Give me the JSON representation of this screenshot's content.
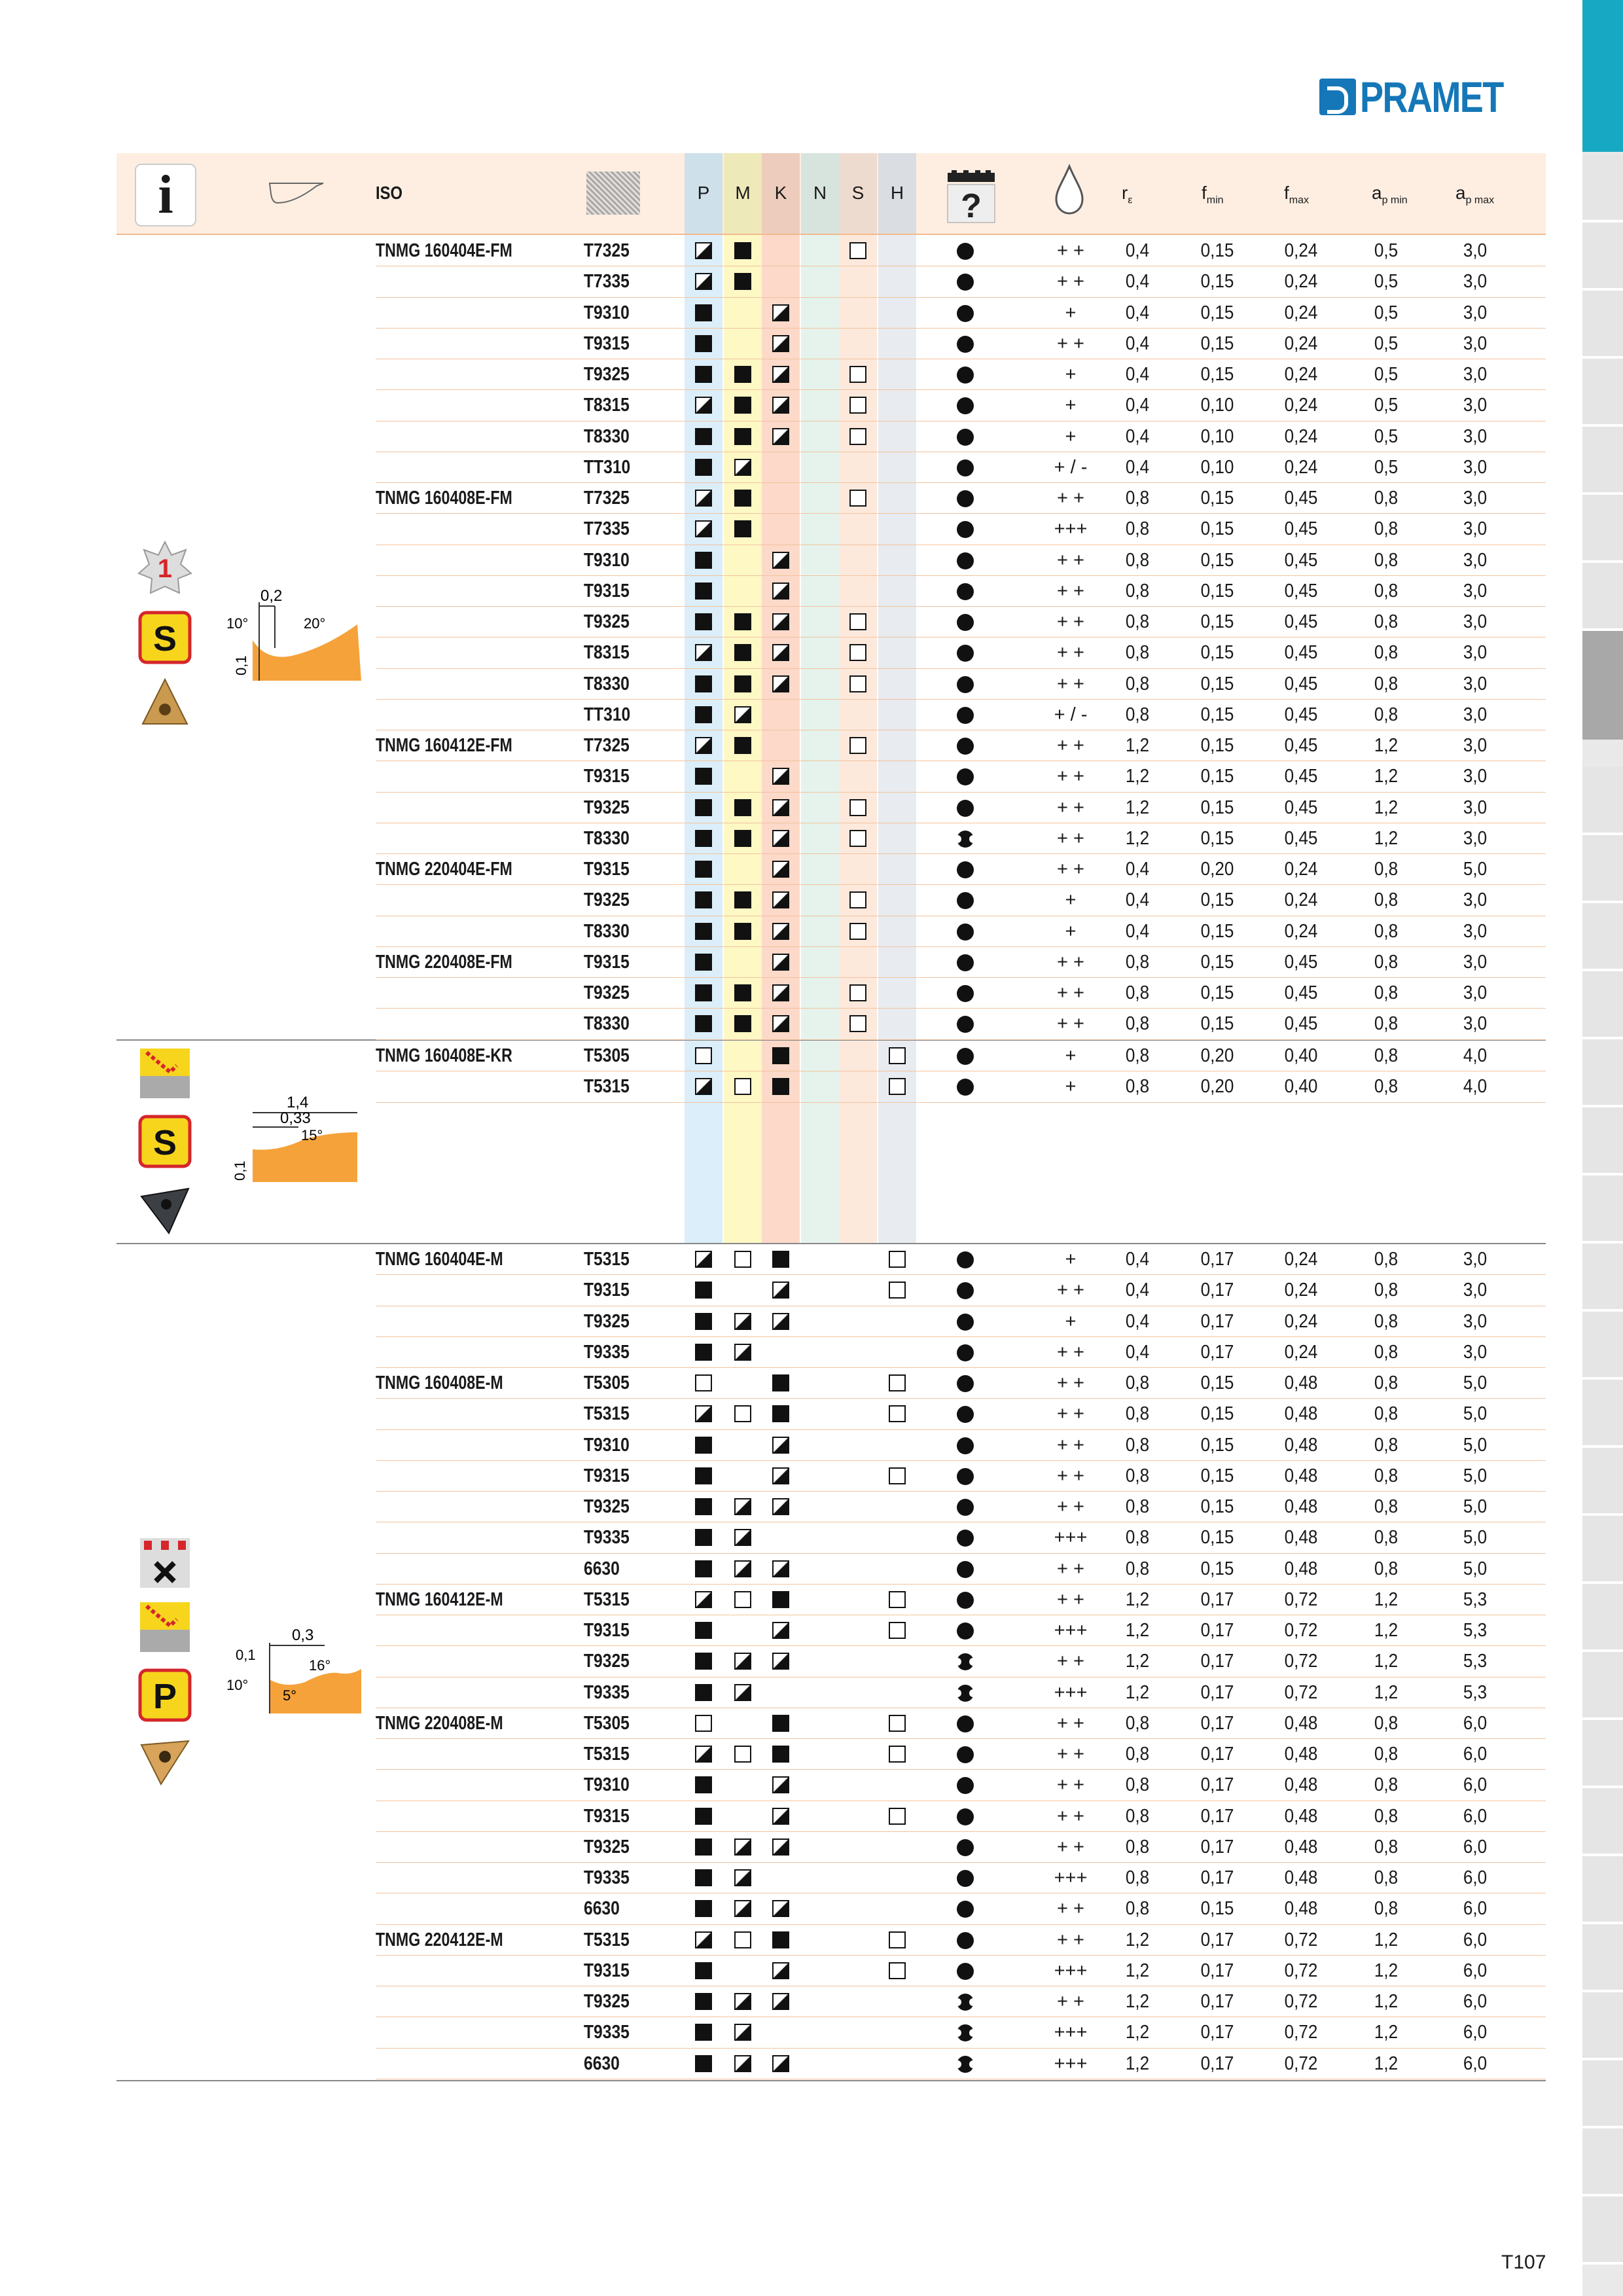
{
  "brand": {
    "name": "PRAMET"
  },
  "page_number": "T107",
  "header": {
    "iso": "ISO",
    "groups": [
      "P",
      "M",
      "K",
      "N",
      "S",
      "H"
    ],
    "group_colors": [
      "#dbeef9",
      "#fdf8c4",
      "#fcd9c9",
      "#e5f3ec",
      "#fde9dc",
      "#e8ebef"
    ],
    "cols": [
      {
        "main": "r",
        "sub": "ε"
      },
      {
        "main": "f",
        "sub": "min"
      },
      {
        "main": "f",
        "sub": "max"
      },
      {
        "main": "a",
        "sub": "p min"
      },
      {
        "main": "a",
        "sub": "p max"
      }
    ]
  },
  "diagram_labels": {
    "fm": [
      "0,2",
      "10°",
      "20°",
      "0,1"
    ],
    "kr": [
      "1,4",
      "0,33",
      "15°",
      "0,1"
    ],
    "m": [
      "0,1",
      "0,3",
      "16°",
      "10°",
      "5°"
    ]
  },
  "icon_labels": {
    "s": "S",
    "p": "P",
    "one": "1"
  },
  "rows": [
    {
      "d": "TNMG 160404E-FM",
      "g": "T7325",
      "P": "h",
      "M": "f",
      "K": "",
      "S": "o",
      "H": "",
      "w": "d",
      "c": "+ +",
      "v": [
        "0,4",
        "0,15",
        "0,24",
        "0,5",
        "3,0"
      ]
    },
    {
      "d": "",
      "g": "T7335",
      "P": "h",
      "M": "f",
      "K": "",
      "S": "",
      "H": "",
      "w": "d",
      "c": "+ +",
      "v": [
        "0,4",
        "0,15",
        "0,24",
        "0,5",
        "3,0"
      ]
    },
    {
      "d": "",
      "g": "T9310",
      "P": "f",
      "M": "",
      "K": "h",
      "S": "",
      "H": "",
      "w": "d",
      "c": "+",
      "v": [
        "0,4",
        "0,15",
        "0,24",
        "0,5",
        "3,0"
      ]
    },
    {
      "d": "",
      "g": "T9315",
      "P": "f",
      "M": "",
      "K": "h",
      "S": "",
      "H": "",
      "w": "d",
      "c": "+ +",
      "v": [
        "0,4",
        "0,15",
        "0,24",
        "0,5",
        "3,0"
      ]
    },
    {
      "d": "",
      "g": "T9325",
      "P": "f",
      "M": "f",
      "K": "h",
      "S": "o",
      "H": "",
      "w": "d",
      "c": "+",
      "v": [
        "0,4",
        "0,15",
        "0,24",
        "0,5",
        "3,0"
      ]
    },
    {
      "d": "",
      "g": "T8315",
      "P": "h",
      "M": "f",
      "K": "h",
      "S": "o",
      "H": "",
      "w": "d",
      "c": "+",
      "v": [
        "0,4",
        "0,10",
        "0,24",
        "0,5",
        "3,0"
      ]
    },
    {
      "d": "",
      "g": "T8330",
      "P": "f",
      "M": "f",
      "K": "h",
      "S": "o",
      "H": "",
      "w": "d",
      "c": "+",
      "v": [
        "0,4",
        "0,10",
        "0,24",
        "0,5",
        "3,0"
      ]
    },
    {
      "d": "",
      "g": "TT310",
      "P": "f",
      "M": "h",
      "K": "",
      "S": "",
      "H": "",
      "w": "d",
      "c": "+ / -",
      "v": [
        "0,4",
        "0,10",
        "0,24",
        "0,5",
        "3,0"
      ]
    },
    {
      "d": "TNMG 160408E-FM",
      "g": "T7325",
      "P": "h",
      "M": "f",
      "K": "",
      "S": "o",
      "H": "",
      "w": "d",
      "c": "+ +",
      "v": [
        "0,8",
        "0,15",
        "0,45",
        "0,8",
        "3,0"
      ]
    },
    {
      "d": "",
      "g": "T7335",
      "P": "h",
      "M": "f",
      "K": "",
      "S": "",
      "H": "",
      "w": "d",
      "c": "+++",
      "v": [
        "0,8",
        "0,15",
        "0,45",
        "0,8",
        "3,0"
      ]
    },
    {
      "d": "",
      "g": "T9310",
      "P": "f",
      "M": "",
      "K": "h",
      "S": "",
      "H": "",
      "w": "d",
      "c": "+ +",
      "v": [
        "0,8",
        "0,15",
        "0,45",
        "0,8",
        "3,0"
      ]
    },
    {
      "d": "",
      "g": "T9315",
      "P": "f",
      "M": "",
      "K": "h",
      "S": "",
      "H": "",
      "w": "d",
      "c": "+ +",
      "v": [
        "0,8",
        "0,15",
        "0,45",
        "0,8",
        "3,0"
      ]
    },
    {
      "d": "",
      "g": "T9325",
      "P": "f",
      "M": "f",
      "K": "h",
      "S": "o",
      "H": "",
      "w": "d",
      "c": "+ +",
      "v": [
        "0,8",
        "0,15",
        "0,45",
        "0,8",
        "3,0"
      ]
    },
    {
      "d": "",
      "g": "T8315",
      "P": "h",
      "M": "f",
      "K": "h",
      "S": "o",
      "H": "",
      "w": "d",
      "c": "+ +",
      "v": [
        "0,8",
        "0,15",
        "0,45",
        "0,8",
        "3,0"
      ]
    },
    {
      "d": "",
      "g": "T8330",
      "P": "f",
      "M": "f",
      "K": "h",
      "S": "o",
      "H": "",
      "w": "d",
      "c": "+ +",
      "v": [
        "0,8",
        "0,15",
        "0,45",
        "0,8",
        "3,0"
      ]
    },
    {
      "d": "",
      "g": "TT310",
      "P": "f",
      "M": "h",
      "K": "",
      "S": "",
      "H": "",
      "w": "d",
      "c": "+ / -",
      "v": [
        "0,8",
        "0,15",
        "0,45",
        "0,8",
        "3,0"
      ]
    },
    {
      "d": "TNMG 160412E-FM",
      "g": "T7325",
      "P": "h",
      "M": "f",
      "K": "",
      "S": "o",
      "H": "",
      "w": "d",
      "c": "+ +",
      "v": [
        "1,2",
        "0,15",
        "0,45",
        "1,2",
        "3,0"
      ]
    },
    {
      "d": "",
      "g": "T9315",
      "P": "f",
      "M": "",
      "K": "h",
      "S": "",
      "H": "",
      "w": "d",
      "c": "+ +",
      "v": [
        "1,2",
        "0,15",
        "0,45",
        "1,2",
        "3,0"
      ]
    },
    {
      "d": "",
      "g": "T9325",
      "P": "f",
      "M": "f",
      "K": "h",
      "S": "o",
      "H": "",
      "w": "d",
      "c": "+ +",
      "v": [
        "1,2",
        "0,15",
        "0,45",
        "1,2",
        "3,0"
      ]
    },
    {
      "d": "",
      "g": "T8330",
      "P": "f",
      "M": "f",
      "K": "h",
      "S": "o",
      "H": "",
      "w": "w",
      "c": "+ +",
      "v": [
        "1,2",
        "0,15",
        "0,45",
        "1,2",
        "3,0"
      ]
    },
    {
      "d": "TNMG 220404E-FM",
      "g": "T9315",
      "P": "f",
      "M": "",
      "K": "h",
      "S": "",
      "H": "",
      "w": "d",
      "c": "+ +",
      "v": [
        "0,4",
        "0,20",
        "0,24",
        "0,8",
        "5,0"
      ]
    },
    {
      "d": "",
      "g": "T9325",
      "P": "f",
      "M": "f",
      "K": "h",
      "S": "o",
      "H": "",
      "w": "d",
      "c": "+",
      "v": [
        "0,4",
        "0,15",
        "0,24",
        "0,8",
        "3,0"
      ]
    },
    {
      "d": "",
      "g": "T8330",
      "P": "f",
      "M": "f",
      "K": "h",
      "S": "o",
      "H": "",
      "w": "d",
      "c": "+",
      "v": [
        "0,4",
        "0,15",
        "0,24",
        "0,8",
        "3,0"
      ]
    },
    {
      "d": "TNMG 220408E-FM",
      "g": "T9315",
      "P": "f",
      "M": "",
      "K": "h",
      "S": "",
      "H": "",
      "w": "d",
      "c": "+ +",
      "v": [
        "0,8",
        "0,15",
        "0,45",
        "0,8",
        "3,0"
      ]
    },
    {
      "d": "",
      "g": "T9325",
      "P": "f",
      "M": "f",
      "K": "h",
      "S": "o",
      "H": "",
      "w": "d",
      "c": "+ +",
      "v": [
        "0,8",
        "0,15",
        "0,45",
        "0,8",
        "3,0"
      ]
    },
    {
      "d": "",
      "g": "T8330",
      "P": "f",
      "M": "f",
      "K": "h",
      "S": "o",
      "H": "",
      "w": "d",
      "c": "+ +",
      "v": [
        "0,8",
        "0,15",
        "0,45",
        "0,8",
        "3,0"
      ]
    },
    {
      "d": "TNMG 160408E-KR",
      "g": "T5305",
      "P": "o",
      "M": "",
      "K": "f",
      "S": "",
      "H": "o",
      "w": "d",
      "c": "+",
      "v": [
        "0,8",
        "0,20",
        "0,40",
        "0,8",
        "4,0"
      ]
    },
    {
      "d": "",
      "g": "T5315",
      "P": "h",
      "M": "o",
      "K": "f",
      "S": "",
      "H": "o",
      "w": "d",
      "c": "+",
      "v": [
        "0,8",
        "0,20",
        "0,40",
        "0,8",
        "4,0"
      ]
    },
    {
      "d": "TNMG 160404E-M",
      "g": "T5315",
      "P": "h",
      "M": "o",
      "K": "f",
      "S": "",
      "H": "o",
      "w": "d",
      "c": "+",
      "v": [
        "0,4",
        "0,17",
        "0,24",
        "0,8",
        "3,0"
      ]
    },
    {
      "d": "",
      "g": "T9315",
      "P": "f",
      "M": "",
      "K": "h",
      "S": "",
      "H": "o",
      "w": "d",
      "c": "+ +",
      "v": [
        "0,4",
        "0,17",
        "0,24",
        "0,8",
        "3,0"
      ]
    },
    {
      "d": "",
      "g": "T9325",
      "P": "f",
      "M": "h",
      "K": "h",
      "S": "",
      "H": "",
      "w": "d",
      "c": "+",
      "v": [
        "0,4",
        "0,17",
        "0,24",
        "0,8",
        "3,0"
      ]
    },
    {
      "d": "",
      "g": "T9335",
      "P": "f",
      "M": "h",
      "K": "",
      "S": "",
      "H": "",
      "w": "d",
      "c": "+ +",
      "v": [
        "0,4",
        "0,17",
        "0,24",
        "0,8",
        "3,0"
      ]
    },
    {
      "d": "TNMG 160408E-M",
      "g": "T5305",
      "P": "o",
      "M": "",
      "K": "f",
      "S": "",
      "H": "o",
      "w": "d",
      "c": "+ +",
      "v": [
        "0,8",
        "0,15",
        "0,48",
        "0,8",
        "5,0"
      ]
    },
    {
      "d": "",
      "g": "T5315",
      "P": "h",
      "M": "o",
      "K": "f",
      "S": "",
      "H": "o",
      "w": "d",
      "c": "+ +",
      "v": [
        "0,8",
        "0,15",
        "0,48",
        "0,8",
        "5,0"
      ]
    },
    {
      "d": "",
      "g": "T9310",
      "P": "f",
      "M": "",
      "K": "h",
      "S": "",
      "H": "",
      "w": "d",
      "c": "+ +",
      "v": [
        "0,8",
        "0,15",
        "0,48",
        "0,8",
        "5,0"
      ]
    },
    {
      "d": "",
      "g": "T9315",
      "P": "f",
      "M": "",
      "K": "h",
      "S": "",
      "H": "o",
      "w": "d",
      "c": "+ +",
      "v": [
        "0,8",
        "0,15",
        "0,48",
        "0,8",
        "5,0"
      ]
    },
    {
      "d": "",
      "g": "T9325",
      "P": "f",
      "M": "h",
      "K": "h",
      "S": "",
      "H": "",
      "w": "d",
      "c": "+ +",
      "v": [
        "0,8",
        "0,15",
        "0,48",
        "0,8",
        "5,0"
      ]
    },
    {
      "d": "",
      "g": "T9335",
      "P": "f",
      "M": "h",
      "K": "",
      "S": "",
      "H": "",
      "w": "d",
      "c": "+++",
      "v": [
        "0,8",
        "0,15",
        "0,48",
        "0,8",
        "5,0"
      ]
    },
    {
      "d": "",
      "g": "6630",
      "P": "f",
      "M": "h",
      "K": "h",
      "S": "",
      "H": "",
      "w": "d",
      "c": "+ +",
      "v": [
        "0,8",
        "0,15",
        "0,48",
        "0,8",
        "5,0"
      ]
    },
    {
      "d": "TNMG 160412E-M",
      "g": "T5315",
      "P": "h",
      "M": "o",
      "K": "f",
      "S": "",
      "H": "o",
      "w": "d",
      "c": "+ +",
      "v": [
        "1,2",
        "0,17",
        "0,72",
        "1,2",
        "5,3"
      ]
    },
    {
      "d": "",
      "g": "T9315",
      "P": "f",
      "M": "",
      "K": "h",
      "S": "",
      "H": "o",
      "w": "d",
      "c": "+++",
      "v": [
        "1,2",
        "0,17",
        "0,72",
        "1,2",
        "5,3"
      ]
    },
    {
      "d": "",
      "g": "T9325",
      "P": "f",
      "M": "h",
      "K": "h",
      "S": "",
      "H": "",
      "w": "w",
      "c": "+ +",
      "v": [
        "1,2",
        "0,17",
        "0,72",
        "1,2",
        "5,3"
      ]
    },
    {
      "d": "",
      "g": "T9335",
      "P": "f",
      "M": "h",
      "K": "",
      "S": "",
      "H": "",
      "w": "w",
      "c": "+++",
      "v": [
        "1,2",
        "0,17",
        "0,72",
        "1,2",
        "5,3"
      ]
    },
    {
      "d": "TNMG 220408E-M",
      "g": "T5305",
      "P": "o",
      "M": "",
      "K": "f",
      "S": "",
      "H": "o",
      "w": "d",
      "c": "+ +",
      "v": [
        "0,8",
        "0,17",
        "0,48",
        "0,8",
        "6,0"
      ]
    },
    {
      "d": "",
      "g": "T5315",
      "P": "h",
      "M": "o",
      "K": "f",
      "S": "",
      "H": "o",
      "w": "d",
      "c": "+ +",
      "v": [
        "0,8",
        "0,17",
        "0,48",
        "0,8",
        "6,0"
      ]
    },
    {
      "d": "",
      "g": "T9310",
      "P": "f",
      "M": "",
      "K": "h",
      "S": "",
      "H": "",
      "w": "d",
      "c": "+ +",
      "v": [
        "0,8",
        "0,17",
        "0,48",
        "0,8",
        "6,0"
      ]
    },
    {
      "d": "",
      "g": "T9315",
      "P": "f",
      "M": "",
      "K": "h",
      "S": "",
      "H": "o",
      "w": "d",
      "c": "+ +",
      "v": [
        "0,8",
        "0,17",
        "0,48",
        "0,8",
        "6,0"
      ]
    },
    {
      "d": "",
      "g": "T9325",
      "P": "f",
      "M": "h",
      "K": "h",
      "S": "",
      "H": "",
      "w": "d",
      "c": "+ +",
      "v": [
        "0,8",
        "0,17",
        "0,48",
        "0,8",
        "6,0"
      ]
    },
    {
      "d": "",
      "g": "T9335",
      "P": "f",
      "M": "h",
      "K": "",
      "S": "",
      "H": "",
      "w": "d",
      "c": "+++",
      "v": [
        "0,8",
        "0,17",
        "0,48",
        "0,8",
        "6,0"
      ]
    },
    {
      "d": "",
      "g": "6630",
      "P": "f",
      "M": "h",
      "K": "h",
      "S": "",
      "H": "",
      "w": "d",
      "c": "+ +",
      "v": [
        "0,8",
        "0,15",
        "0,48",
        "0,8",
        "6,0"
      ]
    },
    {
      "d": "TNMG 220412E-M",
      "g": "T5315",
      "P": "h",
      "M": "o",
      "K": "f",
      "S": "",
      "H": "o",
      "w": "d",
      "c": "+ +",
      "v": [
        "1,2",
        "0,17",
        "0,72",
        "1,2",
        "6,0"
      ]
    },
    {
      "d": "",
      "g": "T9315",
      "P": "f",
      "M": "",
      "K": "h",
      "S": "",
      "H": "o",
      "w": "d",
      "c": "+++",
      "v": [
        "1,2",
        "0,17",
        "0,72",
        "1,2",
        "6,0"
      ]
    },
    {
      "d": "",
      "g": "T9325",
      "P": "f",
      "M": "h",
      "K": "h",
      "S": "",
      "H": "",
      "w": "w",
      "c": "+ +",
      "v": [
        "1,2",
        "0,17",
        "0,72",
        "1,2",
        "6,0"
      ]
    },
    {
      "d": "",
      "g": "T9335",
      "P": "f",
      "M": "h",
      "K": "",
      "S": "",
      "H": "",
      "w": "w",
      "c": "+++",
      "v": [
        "1,2",
        "0,17",
        "0,72",
        "1,2",
        "6,0"
      ]
    },
    {
      "d": "",
      "g": "6630",
      "P": "f",
      "M": "h",
      "K": "h",
      "S": "",
      "H": "",
      "w": "w",
      "c": "+++",
      "v": [
        "1,2",
        "0,17",
        "0,72",
        "1,2",
        "6,0"
      ]
    }
  ]
}
